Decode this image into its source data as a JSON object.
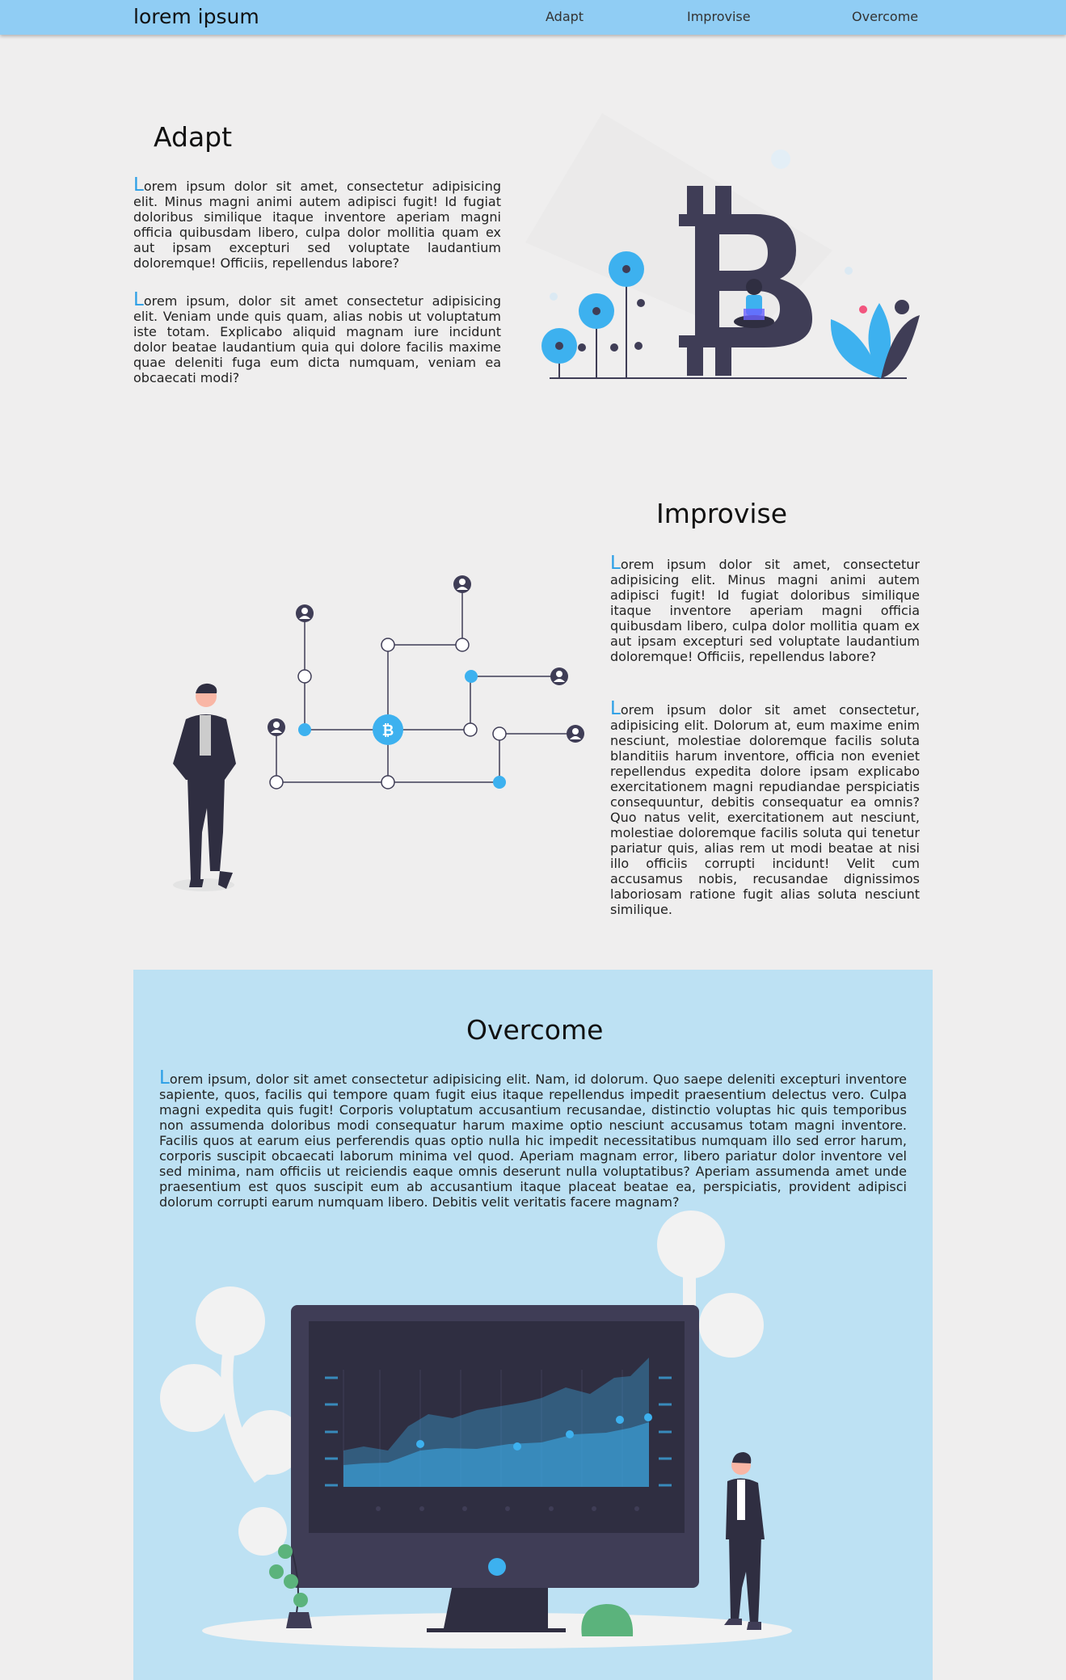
{
  "nav": {
    "brand": "lorem ipsum",
    "links": [
      "Adapt",
      "Improvise",
      "Overcome"
    ]
  },
  "adapt": {
    "title": "Adapt",
    "p1": "Lorem ipsum dolor sit amet, consectetur adipisicing elit. Minus magni animi autem adipisci fugit! Id fugiat doloribus similique itaque inventore aperiam magni officia quibusdam libero, culpa dolor mollitia quam ex aut ipsam excepturi sed voluptate laudantium doloremque! Officiis, repellendus labore?",
    "p2": "Lorem ipsum, dolor sit amet consectetur adipisicing elit. Veniam unde quis quam, alias nobis ut voluptatum iste totam. Explicabo aliquid magnam iure incidunt dolor beatae laudantium quia qui dolore facilis maxime quae deleniti fuga eum dicta numquam, veniam ea obcaecati modi?"
  },
  "improvise": {
    "title": "Improvise",
    "p1": "Lorem ipsum dolor sit amet, consectetur adipisicing elit. Minus magni animi autem adipisci fugit! Id fugiat doloribus similique itaque inventore aperiam magni officia quibusdam libero, culpa dolor mollitia quam ex aut ipsam excepturi sed voluptate laudantium doloremque! Officiis, repellendus labore?",
    "p2": "Lorem ipsum dolor sit amet consectetur, adipisicing elit. Dolorum at, eum maxime enim nesciunt, molestiae doloremque facilis soluta blanditiis harum inventore, officia non eveniet repellendus expedita dolore ipsam explicabo exercitationem magni repudiandae perspiciatis consequuntur, debitis consequatur ea omnis? Quo natus velit, exercitationem aut nesciunt, molestiae doloremque facilis soluta qui tenetur pariatur quis, alias rem ut modi beatae at nisi illo officiis corrupti incidunt! Velit cum accusamus nobis, recusandae dignissimos laboriosam ratione fugit alias soluta nesciunt similique."
  },
  "overcome": {
    "title": "Overcome",
    "p1": "Lorem ipsum, dolor sit amet consectetur adipisicing elit. Nam, id dolorum. Quo saepe deleniti excepturi inventore sapiente, quos, facilis qui tempore quam fugit eius itaque repellendus impedit praesentium delectus vero. Culpa magni expedita quis fugit! Corporis voluptatum accusantium recusandae, distinctio voluptas hic quis temporibus non assumenda doloribus modi consequatur harum maxime optio nesciunt accusamus totam magni inventore. Facilis quos at earum eius perferendis quas optio nulla hic impedit necessitatibus numquam illo sed error harum, corporis suscipit obcaecati laborum minima vel quod. Aperiam magnam error, libero pariatur dolor inventore vel sed minima, nam officiis ut reiciendis eaque omnis deserunt nulla voluptatibus? Aperiam assumenda amet unde praesentium est quos suscipit eum ab accusantium itaque placeat beatae ea, perspiciatis, provident adipisci dolorum corrupti earum numquam libero. Debitis velit veritatis facere magnam?"
  },
  "colors": {
    "navbar": "#90cdf4",
    "accent": "#3db1ef",
    "panel": "#bde1f3",
    "dark": "#3f3d56"
  },
  "icons": [
    "bitcoin-illustration",
    "network-illustration",
    "monitor-chart-illustration"
  ]
}
